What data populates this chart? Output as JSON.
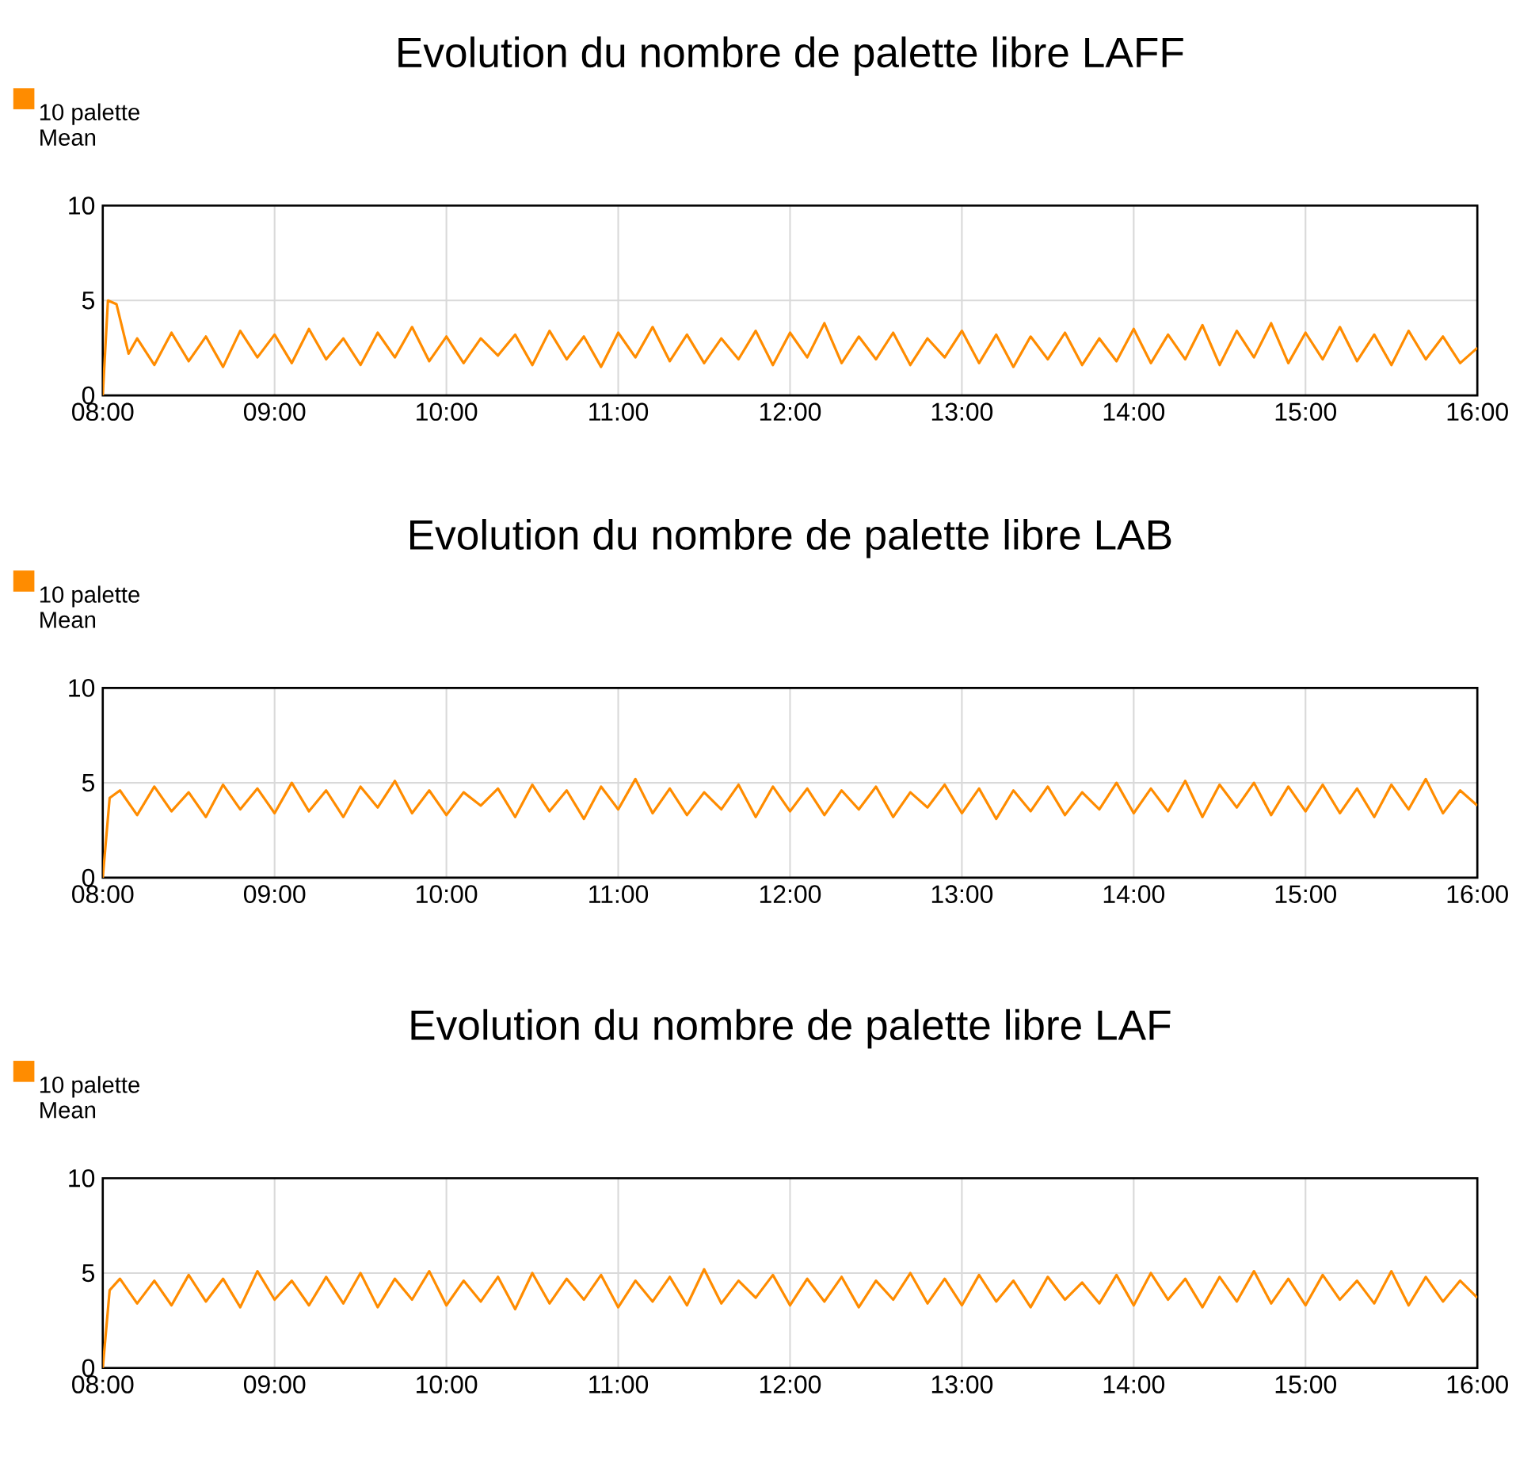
{
  "chart_data": [
    {
      "type": "line",
      "title": "Evolution du nombre de palette libre LAFF",
      "xlim": [
        8,
        16
      ],
      "ylim": [
        0,
        10
      ],
      "yticks": [
        0,
        5,
        10
      ],
      "xticks": [
        {
          "value": 8,
          "label": "08:00"
        },
        {
          "value": 9,
          "label": "09:00"
        },
        {
          "value": 10,
          "label": "10:00"
        },
        {
          "value": 11,
          "label": "11:00"
        },
        {
          "value": 12,
          "label": "12:00"
        },
        {
          "value": 13,
          "label": "13:00"
        },
        {
          "value": 14,
          "label": "14:00"
        },
        {
          "value": 15,
          "label": "15:00"
        },
        {
          "value": 16,
          "label": "16:00"
        }
      ],
      "grid": true,
      "legend": "top left",
      "series": [
        {
          "name": "10 palette Mean",
          "color": "#ff8c00",
          "x": [
            8.0,
            8.03,
            8.08,
            8.15,
            8.2,
            8.3,
            8.4,
            8.5,
            8.6,
            8.7,
            8.8,
            8.9,
            9.0,
            9.1,
            9.2,
            9.3,
            9.4,
            9.5,
            9.6,
            9.7,
            9.8,
            9.9,
            10.0,
            10.1,
            10.2,
            10.3,
            10.4,
            10.5,
            10.6,
            10.7,
            10.8,
            10.9,
            11.0,
            11.1,
            11.2,
            11.3,
            11.4,
            11.5,
            11.6,
            11.7,
            11.8,
            11.9,
            12.0,
            12.1,
            12.2,
            12.3,
            12.4,
            12.5,
            12.6,
            12.7,
            12.8,
            12.9,
            13.0,
            13.1,
            13.2,
            13.3,
            13.4,
            13.5,
            13.6,
            13.7,
            13.8,
            13.9,
            14.0,
            14.1,
            14.2,
            14.3,
            14.4,
            14.5,
            14.6,
            14.7,
            14.8,
            14.9,
            15.0,
            15.1,
            15.2,
            15.3,
            15.4,
            15.5,
            15.6,
            15.7,
            15.8,
            15.9,
            16.0
          ],
          "values": [
            0,
            5,
            4.8,
            2.2,
            3.0,
            1.6,
            3.3,
            1.8,
            3.1,
            1.5,
            3.4,
            2.0,
            3.2,
            1.7,
            3.5,
            1.9,
            3.0,
            1.6,
            3.3,
            2.0,
            3.6,
            1.8,
            3.1,
            1.7,
            3.0,
            2.1,
            3.2,
            1.6,
            3.4,
            1.9,
            3.1,
            1.5,
            3.3,
            2.0,
            3.6,
            1.8,
            3.2,
            1.7,
            3.0,
            1.9,
            3.4,
            1.6,
            3.3,
            2.0,
            3.8,
            1.7,
            3.1,
            1.9,
            3.3,
            1.6,
            3.0,
            2.0,
            3.4,
            1.7,
            3.2,
            1.5,
            3.1,
            1.9,
            3.3,
            1.6,
            3.0,
            1.8,
            3.5,
            1.7,
            3.2,
            1.9,
            3.7,
            1.6,
            3.4,
            2.0,
            3.8,
            1.7,
            3.3,
            1.9,
            3.6,
            1.8,
            3.2,
            1.6,
            3.4,
            1.9,
            3.1,
            1.7,
            2.5
          ]
        }
      ]
    },
    {
      "type": "line",
      "title": "Evolution du nombre de palette libre LAB",
      "xlim": [
        8,
        16
      ],
      "ylim": [
        0,
        10
      ],
      "yticks": [
        0,
        5,
        10
      ],
      "xticks": [
        {
          "value": 8,
          "label": "08:00"
        },
        {
          "value": 9,
          "label": "09:00"
        },
        {
          "value": 10,
          "label": "10:00"
        },
        {
          "value": 11,
          "label": "11:00"
        },
        {
          "value": 12,
          "label": "12:00"
        },
        {
          "value": 13,
          "label": "13:00"
        },
        {
          "value": 14,
          "label": "14:00"
        },
        {
          "value": 15,
          "label": "15:00"
        },
        {
          "value": 16,
          "label": "16:00"
        }
      ],
      "grid": true,
      "legend": "top left",
      "series": [
        {
          "name": "10 palette Mean",
          "color": "#ff8c00",
          "x": [
            8.0,
            8.04,
            8.1,
            8.2,
            8.3,
            8.4,
            8.5,
            8.6,
            8.7,
            8.8,
            8.9,
            9.0,
            9.1,
            9.2,
            9.3,
            9.4,
            9.5,
            9.6,
            9.7,
            9.8,
            9.9,
            10.0,
            10.1,
            10.2,
            10.3,
            10.4,
            10.5,
            10.6,
            10.7,
            10.8,
            10.9,
            11.0,
            11.1,
            11.2,
            11.3,
            11.4,
            11.5,
            11.6,
            11.7,
            11.8,
            11.9,
            12.0,
            12.1,
            12.2,
            12.3,
            12.4,
            12.5,
            12.6,
            12.7,
            12.8,
            12.9,
            13.0,
            13.1,
            13.2,
            13.3,
            13.4,
            13.5,
            13.6,
            13.7,
            13.8,
            13.9,
            14.0,
            14.1,
            14.2,
            14.3,
            14.4,
            14.5,
            14.6,
            14.7,
            14.8,
            14.9,
            15.0,
            15.1,
            15.2,
            15.3,
            15.4,
            15.5,
            15.6,
            15.7,
            15.8,
            15.9,
            16.0
          ],
          "values": [
            0,
            4.2,
            4.6,
            3.3,
            4.8,
            3.5,
            4.5,
            3.2,
            4.9,
            3.6,
            4.7,
            3.4,
            5.0,
            3.5,
            4.6,
            3.2,
            4.8,
            3.7,
            5.1,
            3.4,
            4.6,
            3.3,
            4.5,
            3.8,
            4.7,
            3.2,
            4.9,
            3.5,
            4.6,
            3.1,
            4.8,
            3.6,
            5.2,
            3.4,
            4.7,
            3.3,
            4.5,
            3.6,
            4.9,
            3.2,
            4.8,
            3.5,
            4.7,
            3.3,
            4.6,
            3.6,
            4.8,
            3.2,
            4.5,
            3.7,
            4.9,
            3.4,
            4.7,
            3.1,
            4.6,
            3.5,
            4.8,
            3.3,
            4.5,
            3.6,
            5.0,
            3.4,
            4.7,
            3.5,
            5.1,
            3.2,
            4.9,
            3.7,
            5.0,
            3.3,
            4.8,
            3.5,
            4.9,
            3.4,
            4.7,
            3.2,
            4.9,
            3.6,
            5.2,
            3.4,
            4.6,
            3.8
          ]
        }
      ]
    },
    {
      "type": "line",
      "title": "Evolution du nombre de palette libre LAF",
      "xlim": [
        8,
        16
      ],
      "ylim": [
        0,
        10
      ],
      "yticks": [
        0,
        5,
        10
      ],
      "xticks": [
        {
          "value": 8,
          "label": "08:00"
        },
        {
          "value": 9,
          "label": "09:00"
        },
        {
          "value": 10,
          "label": "10:00"
        },
        {
          "value": 11,
          "label": "11:00"
        },
        {
          "value": 12,
          "label": "12:00"
        },
        {
          "value": 13,
          "label": "13:00"
        },
        {
          "value": 14,
          "label": "14:00"
        },
        {
          "value": 15,
          "label": "15:00"
        },
        {
          "value": 16,
          "label": "16:00"
        }
      ],
      "grid": true,
      "legend": "top left",
      "series": [
        {
          "name": "10 palette Mean",
          "color": "#ff8c00",
          "x": [
            8.0,
            8.04,
            8.1,
            8.2,
            8.3,
            8.4,
            8.5,
            8.6,
            8.7,
            8.8,
            8.9,
            9.0,
            9.1,
            9.2,
            9.3,
            9.4,
            9.5,
            9.6,
            9.7,
            9.8,
            9.9,
            10.0,
            10.1,
            10.2,
            10.3,
            10.4,
            10.5,
            10.6,
            10.7,
            10.8,
            10.9,
            11.0,
            11.1,
            11.2,
            11.3,
            11.4,
            11.5,
            11.6,
            11.7,
            11.8,
            11.9,
            12.0,
            12.1,
            12.2,
            12.3,
            12.4,
            12.5,
            12.6,
            12.7,
            12.8,
            12.9,
            13.0,
            13.1,
            13.2,
            13.3,
            13.4,
            13.5,
            13.6,
            13.7,
            13.8,
            13.9,
            14.0,
            14.1,
            14.2,
            14.3,
            14.4,
            14.5,
            14.6,
            14.7,
            14.8,
            14.9,
            15.0,
            15.1,
            15.2,
            15.3,
            15.4,
            15.5,
            15.6,
            15.7,
            15.8,
            15.9,
            16.0
          ],
          "values": [
            0,
            4.1,
            4.7,
            3.4,
            4.6,
            3.3,
            4.9,
            3.5,
            4.7,
            3.2,
            5.1,
            3.6,
            4.6,
            3.3,
            4.8,
            3.4,
            5.0,
            3.2,
            4.7,
            3.6,
            5.1,
            3.3,
            4.6,
            3.5,
            4.8,
            3.1,
            5.0,
            3.4,
            4.7,
            3.6,
            4.9,
            3.2,
            4.6,
            3.5,
            4.8,
            3.3,
            5.2,
            3.4,
            4.6,
            3.7,
            4.9,
            3.3,
            4.7,
            3.5,
            4.8,
            3.2,
            4.6,
            3.6,
            5.0,
            3.4,
            4.7,
            3.3,
            4.9,
            3.5,
            4.6,
            3.2,
            4.8,
            3.6,
            4.5,
            3.4,
            4.9,
            3.3,
            5.0,
            3.6,
            4.7,
            3.2,
            4.8,
            3.5,
            5.1,
            3.4,
            4.7,
            3.3,
            4.9,
            3.6,
            4.6,
            3.4,
            5.1,
            3.3,
            4.8,
            3.5,
            4.6,
            3.7
          ]
        }
      ]
    }
  ]
}
